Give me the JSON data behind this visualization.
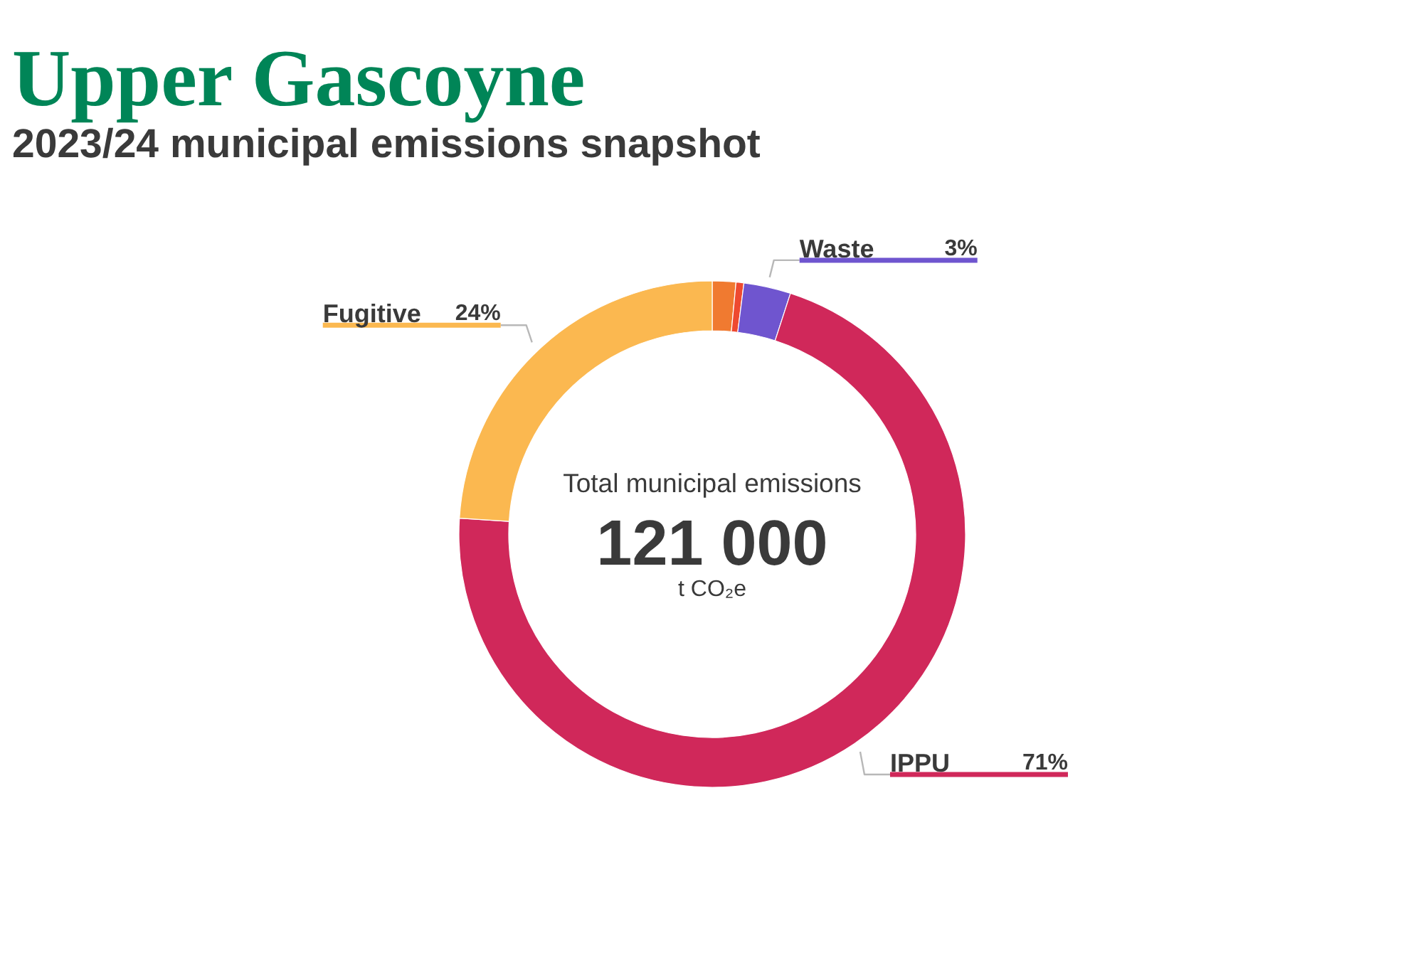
{
  "chart_data": {
    "type": "donut",
    "title": "Upper Gascoyne",
    "subtitle": "2023/24 municipal emissions snapshot",
    "categories": [
      null,
      null,
      "Waste",
      "IPPU",
      "Fugitive"
    ],
    "values": [
      1.5,
      0.5,
      3,
      71,
      24
    ],
    "colors": [
      "#f07a30",
      "#ee4a30",
      "#6f55cf",
      "#d0285a",
      "#fbb850"
    ],
    "value_labels": [
      null,
      null,
      "3%",
      "71%",
      "24%"
    ],
    "annotations": [
      "Total municipal emissions",
      "121 000",
      "t CO₂e"
    ]
  }
}
